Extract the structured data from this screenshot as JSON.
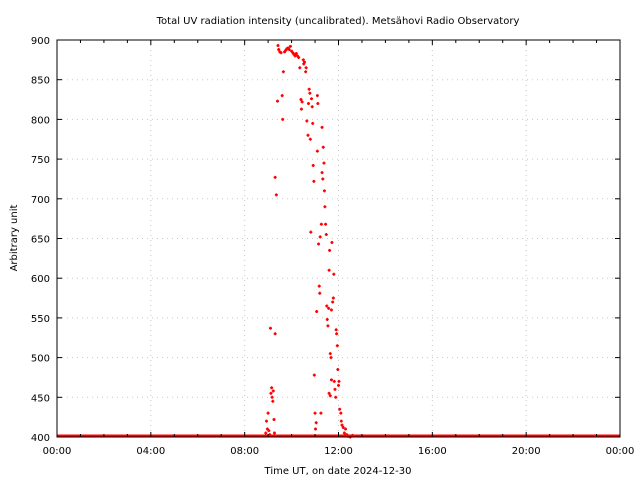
{
  "chart_data": {
    "type": "scatter",
    "title": "Total UV radiation intensity (uncalibrated). Metsähovi Radio Observatory",
    "xlabel": "Time UT, on date 2024-12-30",
    "ylabel": "Arbitrary unit",
    "xlim": [
      0,
      24
    ],
    "ylim": [
      400,
      900
    ],
    "x_ticks": [
      {
        "value": 0,
        "label": "00:00"
      },
      {
        "value": 4,
        "label": "04:00"
      },
      {
        "value": 8,
        "label": "08:00"
      },
      {
        "value": 12,
        "label": "12:00"
      },
      {
        "value": 16,
        "label": "16:00"
      },
      {
        "value": 20,
        "label": "20:00"
      },
      {
        "value": 24,
        "label": "00:00"
      }
    ],
    "y_ticks": [
      {
        "value": 400,
        "label": "400"
      },
      {
        "value": 450,
        "label": "450"
      },
      {
        "value": 500,
        "label": "500"
      },
      {
        "value": 550,
        "label": "550"
      },
      {
        "value": 600,
        "label": "600"
      },
      {
        "value": 650,
        "label": "650"
      },
      {
        "value": 700,
        "label": "700"
      },
      {
        "value": 750,
        "label": "750"
      },
      {
        "value": 800,
        "label": "800"
      },
      {
        "value": 850,
        "label": "850"
      },
      {
        "value": 900,
        "label": "900"
      }
    ],
    "grid": true,
    "color": "#ff0000",
    "baseline": {
      "value": 400,
      "from": 0,
      "to": 24
    },
    "x_unit": "hours UT",
    "points": [
      [
        8.9,
        405
      ],
      [
        8.93,
        420
      ],
      [
        8.97,
        410
      ],
      [
        9.0,
        430
      ],
      [
        9.03,
        408
      ],
      [
        9.07,
        403
      ],
      [
        9.1,
        537
      ],
      [
        9.12,
        455
      ],
      [
        9.15,
        462
      ],
      [
        9.17,
        450
      ],
      [
        9.2,
        445
      ],
      [
        9.22,
        458
      ],
      [
        9.25,
        422
      ],
      [
        9.27,
        405
      ],
      [
        9.3,
        530
      ],
      [
        9.3,
        727
      ],
      [
        9.35,
        705
      ],
      [
        9.4,
        823
      ],
      [
        9.42,
        893
      ],
      [
        9.45,
        888
      ],
      [
        9.5,
        885
      ],
      [
        9.55,
        884
      ],
      [
        9.6,
        830
      ],
      [
        9.62,
        800
      ],
      [
        9.65,
        860
      ],
      [
        9.7,
        885
      ],
      [
        9.75,
        887
      ],
      [
        9.8,
        889
      ],
      [
        9.85,
        890
      ],
      [
        9.9,
        888
      ],
      [
        9.95,
        892
      ],
      [
        10.0,
        886
      ],
      [
        10.05,
        884
      ],
      [
        10.1,
        882
      ],
      [
        10.15,
        880
      ],
      [
        10.2,
        883
      ],
      [
        10.25,
        880
      ],
      [
        10.3,
        878
      ],
      [
        10.35,
        865
      ],
      [
        10.4,
        825
      ],
      [
        10.42,
        813
      ],
      [
        10.45,
        822
      ],
      [
        10.5,
        875
      ],
      [
        10.52,
        870
      ],
      [
        10.55,
        872
      ],
      [
        10.6,
        860
      ],
      [
        10.62,
        865
      ],
      [
        10.65,
        798
      ],
      [
        10.7,
        780
      ],
      [
        10.72,
        820
      ],
      [
        10.75,
        838
      ],
      [
        10.78,
        833
      ],
      [
        10.8,
        775
      ],
      [
        10.82,
        658
      ],
      [
        10.85,
        826
      ],
      [
        10.88,
        816
      ],
      [
        10.9,
        795
      ],
      [
        10.92,
        742
      ],
      [
        10.95,
        722
      ],
      [
        10.97,
        478
      ],
      [
        11.0,
        430
      ],
      [
        11.02,
        410
      ],
      [
        11.05,
        418
      ],
      [
        11.07,
        558
      ],
      [
        11.1,
        760
      ],
      [
        11.1,
        830
      ],
      [
        11.12,
        820
      ],
      [
        11.15,
        643
      ],
      [
        11.18,
        590
      ],
      [
        11.2,
        581
      ],
      [
        11.22,
        652
      ],
      [
        11.25,
        430
      ],
      [
        11.27,
        668
      ],
      [
        11.3,
        790
      ],
      [
        11.3,
        733
      ],
      [
        11.33,
        725
      ],
      [
        11.35,
        765
      ],
      [
        11.38,
        745
      ],
      [
        11.4,
        710
      ],
      [
        11.42,
        690
      ],
      [
        11.45,
        668
      ],
      [
        11.48,
        655
      ],
      [
        11.5,
        565
      ],
      [
        11.52,
        548
      ],
      [
        11.55,
        540
      ],
      [
        11.58,
        562
      ],
      [
        11.6,
        610
      ],
      [
        11.62,
        635
      ],
      [
        11.65,
        505
      ],
      [
        11.68,
        500
      ],
      [
        11.7,
        560
      ],
      [
        11.72,
        645
      ],
      [
        11.75,
        570
      ],
      [
        11.78,
        575
      ],
      [
        11.8,
        605
      ],
      [
        11.82,
        470
      ],
      [
        11.85,
        460
      ],
      [
        11.88,
        450
      ],
      [
        11.9,
        535
      ],
      [
        11.92,
        530
      ],
      [
        11.95,
        515
      ],
      [
        11.97,
        485
      ],
      [
        12.0,
        465
      ],
      [
        12.02,
        470
      ],
      [
        11.6,
        455
      ],
      [
        11.65,
        452
      ],
      [
        11.7,
        472
      ],
      [
        12.05,
        435
      ],
      [
        12.1,
        430
      ],
      [
        12.12,
        420
      ],
      [
        12.15,
        415
      ],
      [
        12.2,
        412
      ],
      [
        12.25,
        405
      ],
      [
        12.3,
        410
      ],
      [
        12.35,
        403
      ],
      [
        12.4,
        401
      ],
      [
        12.5,
        400
      ],
      [
        12.6,
        402
      ]
    ]
  }
}
